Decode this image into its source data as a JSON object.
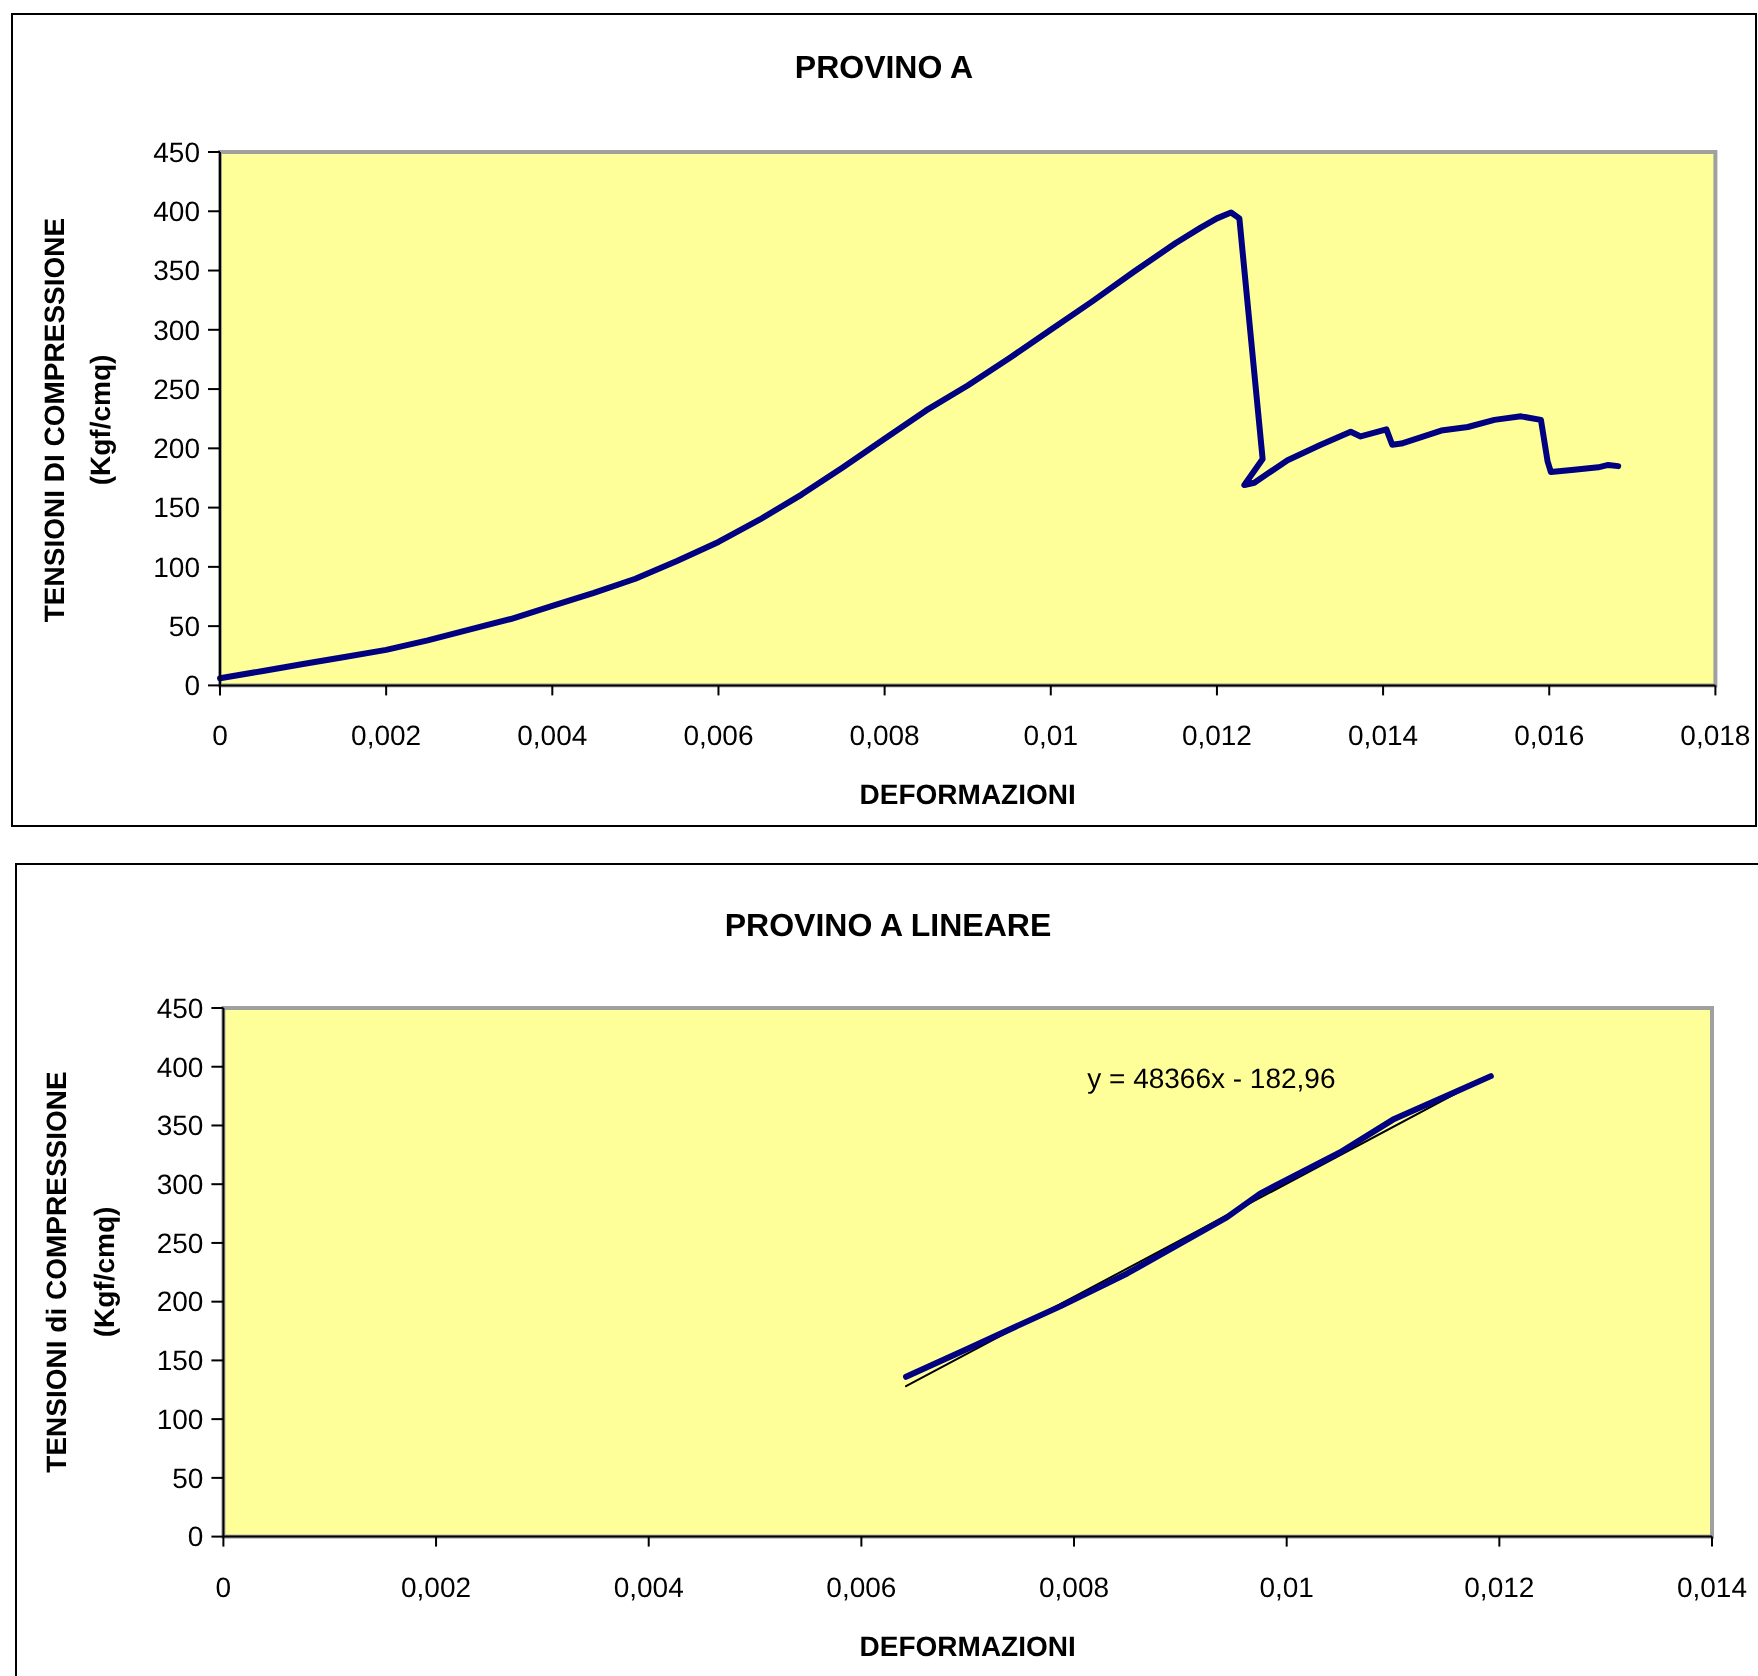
{
  "chart_data": [
    {
      "type": "line",
      "title": "PROVINO A",
      "xlabel": "DEFORMAZIONI",
      "ylabel": "TENSIONI DI COMPRESSIONE\n(Kgf/cmq)",
      "series": [
        {
          "color": "#000080",
          "x": [
            0,
            0.0005,
            0.001,
            0.0015,
            0.002,
            0.0025,
            0.003,
            0.0035,
            0.004,
            0.0045,
            0.005,
            0.0055,
            0.006,
            0.0065,
            0.007,
            0.0075,
            0.008,
            0.0085,
            0.009,
            0.0095,
            0.01,
            0.0105,
            0.011,
            0.0115,
            0.0118,
            0.012,
            0.01217,
            0.01227,
            0.01255,
            0.01233,
            0.01245,
            0.01285,
            0.01325,
            0.01361,
            0.01373,
            0.01404,
            0.01411,
            0.01422,
            0.0147,
            0.01502,
            0.01534,
            0.01566,
            0.0159,
            0.01598,
            0.01602,
            0.0163,
            0.01659,
            0.01671,
            0.01683
          ],
          "values": [
            6,
            12,
            18,
            24,
            30,
            38,
            47,
            56,
            67,
            78,
            90,
            105,
            121,
            140,
            161,
            184,
            208,
            232,
            253,
            276,
            300,
            324,
            349,
            373,
            386,
            394,
            399,
            394,
            191,
            169,
            171,
            190,
            203,
            214,
            210,
            216,
            203,
            204,
            215,
            218,
            224,
            227,
            224,
            189,
            180,
            182,
            184,
            186,
            185
          ]
        }
      ],
      "xlim": [
        0,
        0.018
      ],
      "xticks": [
        0,
        {
          "value": 0.002,
          "label": "0,002"
        },
        {
          "value": 0.004,
          "label": "0,004"
        },
        {
          "value": 0.006,
          "label": "0,006"
        },
        {
          "value": 0.008,
          "label": "0,008"
        },
        {
          "value": 0.01,
          "label": "0,01"
        },
        {
          "value": 0.012,
          "label": "0,012"
        },
        {
          "value": 0.014,
          "label": "0,014"
        },
        {
          "value": 0.016,
          "label": "0,016"
        },
        {
          "value": 0.018,
          "label": "0,018"
        }
      ],
      "ylim": [
        0,
        450
      ],
      "yticks": [
        0,
        50,
        100,
        150,
        200,
        250,
        300,
        350,
        400,
        450
      ]
    },
    {
      "type": "line",
      "title": "PROVINO A LINEARE",
      "xlabel": "DEFORMAZIONI",
      "ylabel": "TENSIONI di COMPRESSIONE\n(Kgf/cmq)",
      "series": [
        {
          "color": "#000080",
          "x": [
            0.00642,
            0.007,
            0.00787,
            0.0085,
            0.00944,
            0.00975,
            0.0105,
            0.011,
            0.0115,
            0.01192
          ],
          "values": [
            136,
            160,
            196,
            224,
            272,
            292,
            327,
            355,
            375,
            392
          ]
        },
        {
          "color": "#000000",
          "x": [
            0.00642,
            0.01192
          ],
          "values": [
            128,
            393
          ]
        }
      ],
      "annotations": [
        "y = 48366x - 182,96"
      ],
      "xlim": [
        0,
        0.014
      ],
      "xticks": [
        0,
        {
          "value": 0.002,
          "label": "0,002"
        },
        {
          "value": 0.004,
          "label": "0,004"
        },
        {
          "value": 0.006,
          "label": "0,006"
        },
        {
          "value": 0.008,
          "label": "0,008"
        },
        {
          "value": 0.01,
          "label": "0,01"
        },
        {
          "value": 0.012,
          "label": "0,012"
        },
        {
          "value": 0.014,
          "label": "0,014"
        }
      ],
      "ylim": [
        0,
        450
      ],
      "yticks": [
        0,
        50,
        100,
        150,
        200,
        250,
        300,
        350,
        400,
        450
      ]
    }
  ]
}
